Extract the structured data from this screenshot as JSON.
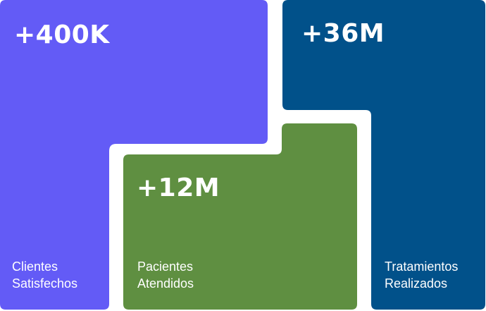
{
  "stats": {
    "clientes": {
      "value": "+400K",
      "label_line1": "Clientes",
      "label_line2": "Satisfechos",
      "color": "#635bf6"
    },
    "pacientes": {
      "value": "+12M",
      "label_line1": "Pacientes",
      "label_line2": "Atendidos",
      "color": "#5f8f41"
    },
    "tratamientos": {
      "value": "+36M",
      "label_line1": "Tratamientos",
      "label_line2": "Realizados",
      "color": "#01518a"
    }
  }
}
